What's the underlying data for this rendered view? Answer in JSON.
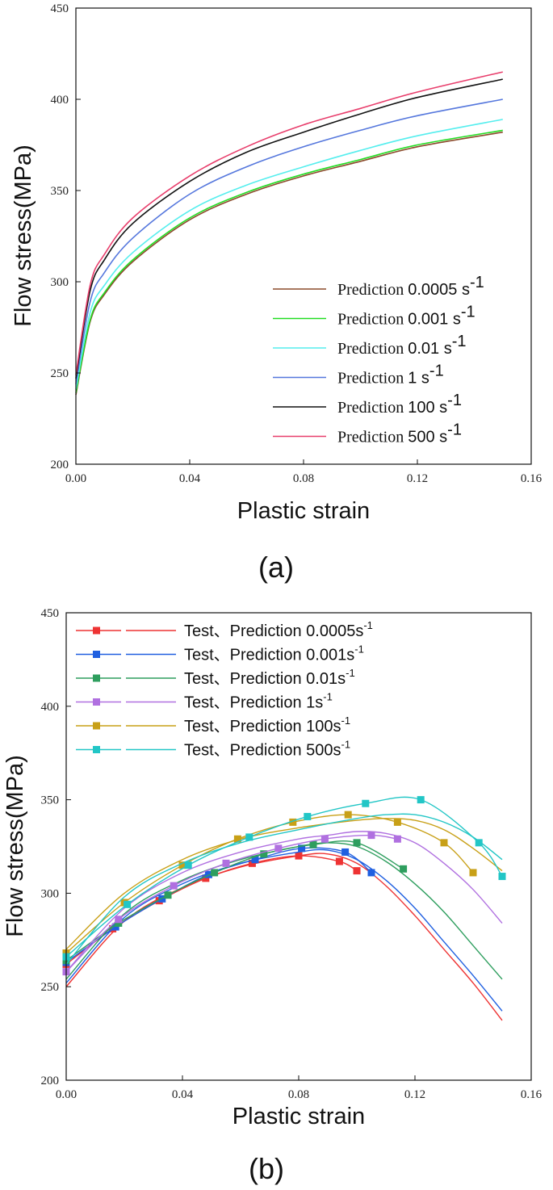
{
  "chart_data": [
    {
      "type": "line",
      "panel_label": "(a)",
      "xlabel": "Plastic strain",
      "ylabel": "Flow stress(MPa)",
      "xlim": [
        0,
        0.16
      ],
      "ylim": [
        200,
        450
      ],
      "xticks": [
        "0.00",
        "0.04",
        "0.08",
        "0.12",
        "0.16"
      ],
      "yticks": [
        "200",
        "250",
        "300",
        "350",
        "400",
        "450"
      ],
      "legend_position": "lower-right",
      "series": [
        {
          "name": "Prediction 0.0005 s",
          "name_parts": [
            "Prediction",
            "0.0005 s"
          ],
          "sup": "-1",
          "color": "#8B4A2B",
          "x": [
            0,
            0.005,
            0.01,
            0.02,
            0.04,
            0.06,
            0.08,
            0.1,
            0.12,
            0.15
          ],
          "y": [
            238,
            278,
            293,
            311,
            334,
            348,
            358,
            366,
            374,
            382
          ]
        },
        {
          "name": "Prediction 0.001 s",
          "name_parts": [
            "Prediction",
            "0.001 s"
          ],
          "sup": "-1",
          "color": "#22DD22",
          "x": [
            0,
            0.005,
            0.01,
            0.02,
            0.04,
            0.06,
            0.08,
            0.1,
            0.12,
            0.15
          ],
          "y": [
            239,
            279,
            294,
            312,
            335,
            349,
            359,
            367,
            375,
            383
          ]
        },
        {
          "name": "Prediction 0.01 s",
          "name_parts": [
            "Prediction",
            "0.01 s"
          ],
          "sup": "-1",
          "color": "#55EEEE",
          "x": [
            0,
            0.005,
            0.01,
            0.02,
            0.04,
            0.06,
            0.08,
            0.1,
            0.12,
            0.15
          ],
          "y": [
            241,
            283,
            298,
            316,
            339,
            353,
            363,
            372,
            380,
            389
          ]
        },
        {
          "name": "Prediction 1 s",
          "name_parts": [
            "Prediction",
            "1 s"
          ],
          "sup": "-1",
          "color": "#5577DD",
          "x": [
            0,
            0.005,
            0.01,
            0.02,
            0.04,
            0.06,
            0.08,
            0.1,
            0.12,
            0.15
          ],
          "y": [
            244,
            289,
            305,
            324,
            348,
            363,
            374,
            383,
            391,
            400
          ]
        },
        {
          "name": "Prediction 100 s",
          "name_parts": [
            "Prediction",
            "100 s"
          ],
          "sup": "-1",
          "color": "#111111",
          "x": [
            0,
            0.005,
            0.01,
            0.02,
            0.04,
            0.06,
            0.08,
            0.1,
            0.12,
            0.15
          ],
          "y": [
            247,
            295,
            312,
            332,
            355,
            371,
            382,
            392,
            401,
            411
          ]
        },
        {
          "name": "Prediction 500 s",
          "name_parts": [
            "Prediction",
            "500 s"
          ],
          "sup": "-1",
          "color": "#E83E6C",
          "x": [
            0,
            0.005,
            0.01,
            0.02,
            0.04,
            0.06,
            0.08,
            0.1,
            0.12,
            0.15
          ],
          "y": [
            249,
            298,
            315,
            335,
            358,
            374,
            386,
            395,
            404,
            415
          ]
        }
      ]
    },
    {
      "type": "line",
      "panel_label": "(b)",
      "xlabel": "Plastic strain",
      "ylabel": "Flow stress(MPa)",
      "xlim": [
        0,
        0.16
      ],
      "ylim": [
        200,
        450
      ],
      "xticks": [
        "0.00",
        "0.04",
        "0.08",
        "0.12",
        "0.16"
      ],
      "yticks": [
        "200",
        "250",
        "300",
        "350",
        "400",
        "450"
      ],
      "legend_position": "top-left",
      "series": [
        {
          "name": "Test、Prediction 0.0005s",
          "sup": "-1",
          "color": "#EE3333",
          "test": {
            "x": [
              0,
              0.016,
              0.032,
              0.048,
              0.064,
              0.08,
              0.094,
              0.1
            ],
            "y": [
              262,
              281,
              296,
              308,
              316,
              320,
              317,
              312
            ]
          },
          "prediction": {
            "x": [
              0,
              0.02,
              0.04,
              0.06,
              0.08,
              0.09,
              0.1,
              0.11,
              0.12,
              0.13,
              0.14,
              0.15
            ],
            "y": [
              250,
              285,
              303,
              314,
              320,
              321,
              316,
              304,
              288,
              270,
              252,
              232
            ]
          }
        },
        {
          "name": "Test、Prediction 0.001s",
          "sup": "-1",
          "color": "#1F5FE0",
          "test": {
            "x": [
              0,
              0.017,
              0.033,
              0.049,
              0.065,
              0.081,
              0.096,
              0.105
            ],
            "y": [
              263,
              282,
              297,
              310,
              318,
              324,
              322,
              311
            ]
          },
          "prediction": {
            "x": [
              0,
              0.02,
              0.04,
              0.06,
              0.08,
              0.09,
              0.1,
              0.11,
              0.12,
              0.13,
              0.14,
              0.15
            ],
            "y": [
              252,
              287,
              305,
              316,
              322,
              323,
              318,
              307,
              292,
              274,
              256,
              237
            ]
          }
        },
        {
          "name": "Test、Prediction 0.01s",
          "sup": "-1",
          "color": "#2E9E5E",
          "test": {
            "x": [
              0,
              0.018,
              0.035,
              0.051,
              0.068,
              0.085,
              0.1,
              0.116
            ],
            "y": [
              264,
              284,
              299,
              311,
              321,
              326,
              327,
              313
            ]
          },
          "prediction": {
            "x": [
              0,
              0.02,
              0.04,
              0.06,
              0.08,
              0.09,
              0.1,
              0.11,
              0.12,
              0.13,
              0.14,
              0.15
            ],
            "y": [
              254,
              289,
              307,
              318,
              325,
              327,
              325,
              317,
              305,
              290,
              272,
              254
            ]
          }
        },
        {
          "name": "Test、Prediction 1s",
          "sup": "-1",
          "color": "#B070E0",
          "test": {
            "x": [
              0,
              0.018,
              0.037,
              0.055,
              0.073,
              0.089,
              0.105,
              0.114
            ],
            "y": [
              258,
              286,
              304,
              316,
              324,
              329,
              331,
              329
            ]
          },
          "prediction": {
            "x": [
              0,
              0.02,
              0.04,
              0.06,
              0.08,
              0.09,
              0.1,
              0.11,
              0.12,
              0.13,
              0.14,
              0.15
            ],
            "y": [
              258,
              292,
              311,
              322,
              329,
              331,
              333,
              332,
              327,
              316,
              302,
              284
            ]
          }
        },
        {
          "name": "Test、Prediction 100s",
          "sup": "-1",
          "color": "#C8A017",
          "test": {
            "x": [
              0,
              0.02,
              0.04,
              0.059,
              0.078,
              0.097,
              0.114,
              0.13,
              0.14
            ],
            "y": [
              268,
              295,
              315,
              329,
              338,
              342,
              338,
              327,
              311
            ]
          },
          "prediction": {
            "x": [
              0,
              0.02,
              0.04,
              0.06,
              0.08,
              0.1,
              0.11,
              0.12,
              0.13,
              0.14,
              0.15
            ],
            "y": [
              270,
              300,
              318,
              329,
              335,
              339,
              340,
              339,
              334,
              324,
              312
            ]
          }
        },
        {
          "name": "Test、Prediction 500s",
          "sup": "-1",
          "color": "#22C6C6",
          "test": {
            "x": [
              0,
              0.021,
              0.042,
              0.063,
              0.083,
              0.103,
              0.122,
              0.142,
              0.15
            ],
            "y": [
              266,
              294,
              315,
              330,
              341,
              348,
              350,
              327,
              309
            ]
          },
          "prediction": {
            "x": [
              0,
              0.02,
              0.04,
              0.06,
              0.08,
              0.1,
              0.11,
              0.12,
              0.13,
              0.14,
              0.15
            ],
            "y": [
              262,
              298,
              316,
              327,
              334,
              340,
              342,
              342,
              338,
              330,
              318
            ]
          }
        }
      ]
    }
  ]
}
